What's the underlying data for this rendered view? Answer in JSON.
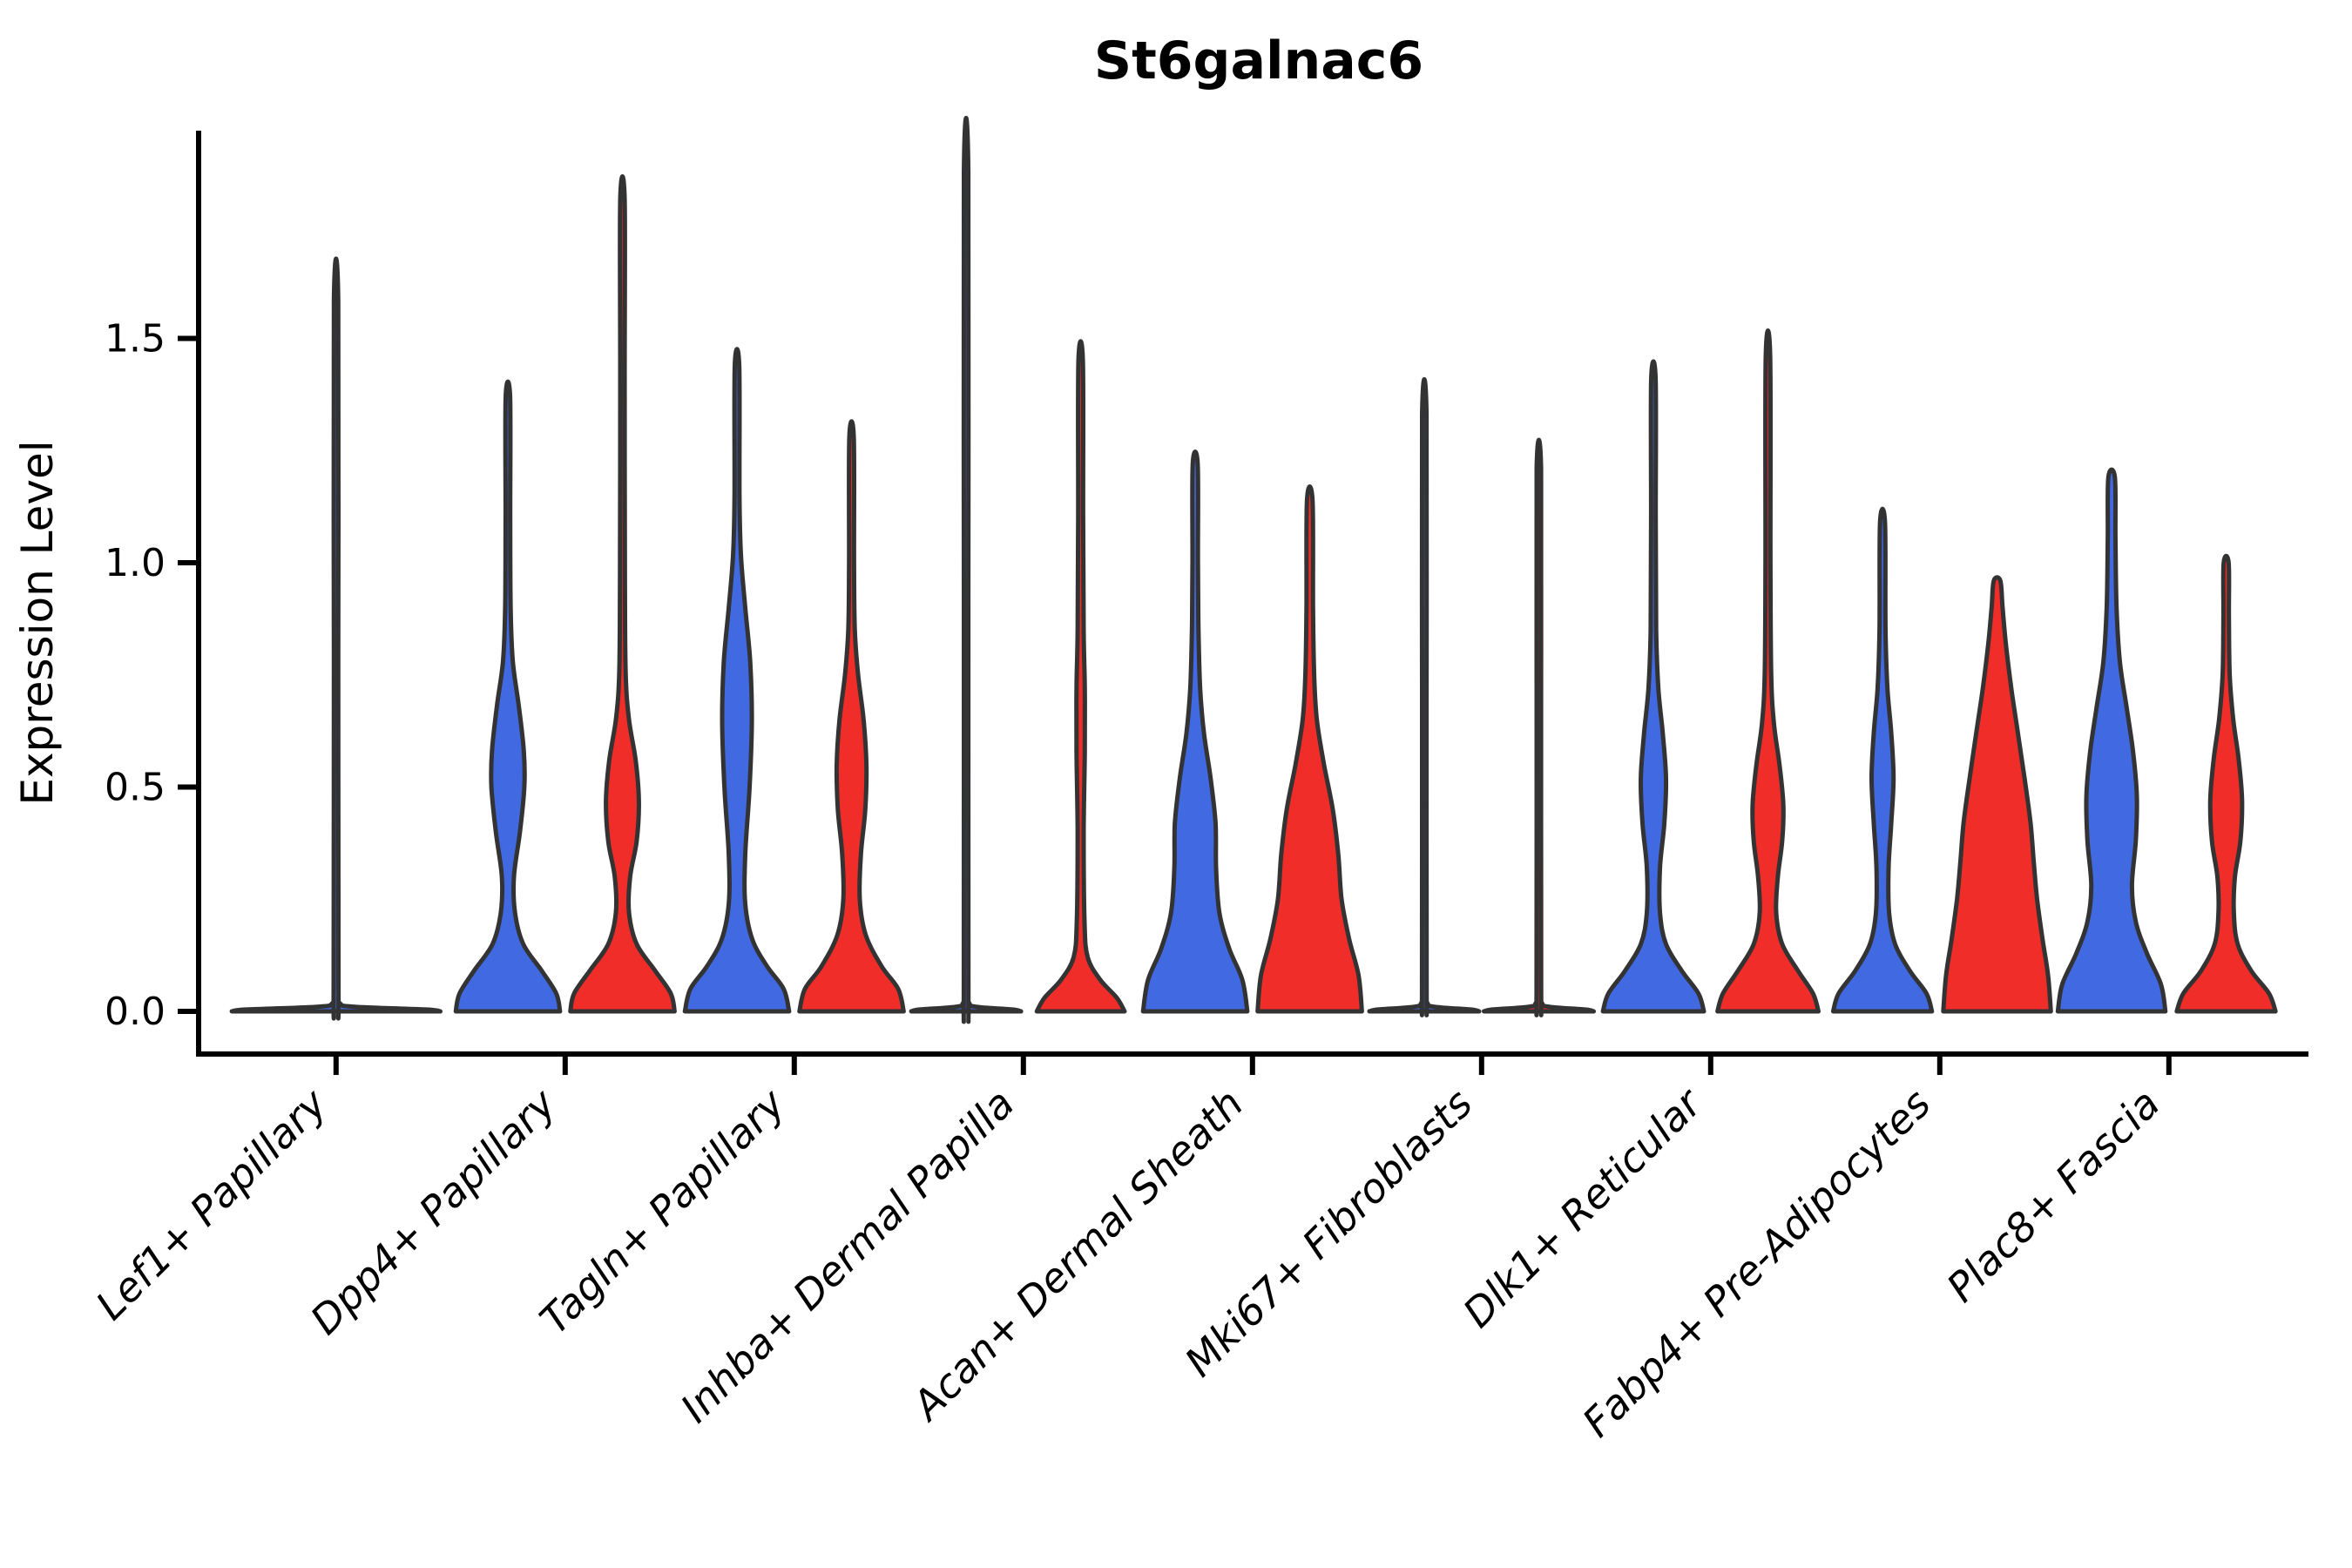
{
  "figure": {
    "background": "#FFFFFF"
  },
  "palette": {
    "blue": "#4169E1",
    "red": "#F02D28",
    "violin_outline": "#333333",
    "axis": "#000000"
  },
  "chart_data": {
    "type": "violin",
    "title": "St6galnac6",
    "xlabel": "",
    "ylabel": "Expression Level",
    "yticks": [
      0.0,
      0.5,
      1.0,
      1.5
    ],
    "ylim": [
      -0.1,
      1.95
    ],
    "grid": false,
    "legend": "none",
    "split_colors": [
      {
        "key": "blue",
        "color": "#4169E1"
      },
      {
        "key": "red",
        "color": "#F02D28"
      }
    ],
    "violins": [
      {
        "category": "Lef1+ Papillary",
        "shapes": [
          {
            "fill": "blue",
            "pos": "center",
            "max": 1.58,
            "profile": [
              [
                0,
                1.9
              ],
              [
                0.004,
                1.65
              ],
              [
                0.01,
                0.35
              ],
              [
                0.018,
                0.07
              ],
              [
                0.05,
                0.045
              ],
              [
                0.8,
                0.04
              ],
              [
                1.58,
                0.04
              ]
            ]
          }
        ]
      },
      {
        "category": "Dpp4+ Papillary",
        "shapes": [
          {
            "fill": "blue",
            "pos": "left",
            "max": 1.37,
            "profile": [
              [
                0,
                0.95
              ],
              [
                0.04,
                0.88
              ],
              [
                0.09,
                0.62
              ],
              [
                0.15,
                0.28
              ],
              [
                0.22,
                0.13
              ],
              [
                0.3,
                0.11
              ],
              [
                0.4,
                0.22
              ],
              [
                0.5,
                0.3
              ],
              [
                0.58,
                0.29
              ],
              [
                0.68,
                0.2
              ],
              [
                0.78,
                0.09
              ],
              [
                0.9,
                0.05
              ],
              [
                1.1,
                0.042
              ],
              [
                1.37,
                0.04
              ]
            ]
          },
          {
            "fill": "red",
            "pos": "right",
            "max": 1.81,
            "profile": [
              [
                0,
                0.95
              ],
              [
                0.04,
                0.88
              ],
              [
                0.09,
                0.6
              ],
              [
                0.15,
                0.26
              ],
              [
                0.22,
                0.12
              ],
              [
                0.3,
                0.14
              ],
              [
                0.38,
                0.26
              ],
              [
                0.47,
                0.3
              ],
              [
                0.56,
                0.24
              ],
              [
                0.65,
                0.12
              ],
              [
                0.75,
                0.06
              ],
              [
                0.95,
                0.045
              ],
              [
                1.4,
                0.04
              ],
              [
                1.81,
                0.04
              ]
            ]
          }
        ]
      },
      {
        "category": "Tagln+ Papillary",
        "shapes": [
          {
            "fill": "blue",
            "pos": "left",
            "max": 1.44,
            "profile": [
              [
                0,
                0.95
              ],
              [
                0.05,
                0.85
              ],
              [
                0.1,
                0.55
              ],
              [
                0.16,
                0.28
              ],
              [
                0.24,
                0.15
              ],
              [
                0.35,
                0.15
              ],
              [
                0.5,
                0.23
              ],
              [
                0.65,
                0.27
              ],
              [
                0.78,
                0.24
              ],
              [
                0.9,
                0.15
              ],
              [
                1.02,
                0.07
              ],
              [
                1.15,
                0.045
              ],
              [
                1.44,
                0.04
              ]
            ]
          },
          {
            "fill": "red",
            "pos": "right",
            "max": 1.28,
            "profile": [
              [
                0,
                0.95
              ],
              [
                0.05,
                0.85
              ],
              [
                0.1,
                0.55
              ],
              [
                0.17,
                0.26
              ],
              [
                0.25,
                0.15
              ],
              [
                0.35,
                0.17
              ],
              [
                0.45,
                0.25
              ],
              [
                0.55,
                0.27
              ],
              [
                0.65,
                0.22
              ],
              [
                0.75,
                0.12
              ],
              [
                0.85,
                0.06
              ],
              [
                1.0,
                0.045
              ],
              [
                1.28,
                0.04
              ]
            ]
          }
        ]
      },
      {
        "category": "Inhba+ Dermal Papilla",
        "shapes": [
          {
            "fill": "blue",
            "pos": "left",
            "max": 1.87,
            "profile": [
              [
                0,
                1.0
              ],
              [
                0.004,
                0.85
              ],
              [
                0.01,
                0.2
              ],
              [
                0.018,
                0.06
              ],
              [
                0.05,
                0.042
              ],
              [
                0.9,
                0.04
              ],
              [
                1.87,
                0.04
              ]
            ]
          },
          {
            "fill": "red",
            "pos": "right",
            "max": 1.45,
            "profile": [
              [
                0,
                0.8
              ],
              [
                0.03,
                0.66
              ],
              [
                0.07,
                0.36
              ],
              [
                0.12,
                0.13
              ],
              [
                0.2,
                0.07
              ],
              [
                0.4,
                0.055
              ],
              [
                0.58,
                0.075
              ],
              [
                0.72,
                0.075
              ],
              [
                0.85,
                0.055
              ],
              [
                1.1,
                0.045
              ],
              [
                1.45,
                0.04
              ]
            ]
          }
        ]
      },
      {
        "category": "Acan+ Dermal Sheath",
        "shapes": [
          {
            "fill": "blue",
            "pos": "left",
            "max": 1.22,
            "profile": [
              [
                0,
                0.95
              ],
              [
                0.07,
                0.86
              ],
              [
                0.14,
                0.62
              ],
              [
                0.22,
                0.44
              ],
              [
                0.32,
                0.38
              ],
              [
                0.42,
                0.37
              ],
              [
                0.52,
                0.28
              ],
              [
                0.62,
                0.16
              ],
              [
                0.72,
                0.09
              ],
              [
                0.85,
                0.06
              ],
              [
                1.0,
                0.05
              ],
              [
                1.22,
                0.045
              ]
            ]
          },
          {
            "fill": "red",
            "pos": "right",
            "max": 1.14,
            "profile": [
              [
                0,
                0.95
              ],
              [
                0.08,
                0.89
              ],
              [
                0.16,
                0.72
              ],
              [
                0.25,
                0.58
              ],
              [
                0.35,
                0.52
              ],
              [
                0.45,
                0.42
              ],
              [
                0.55,
                0.26
              ],
              [
                0.65,
                0.13
              ],
              [
                0.75,
                0.08
              ],
              [
                0.9,
                0.06
              ],
              [
                1.14,
                0.05
              ]
            ]
          }
        ]
      },
      {
        "category": "Mki67+ Fibroblasts",
        "shapes": [
          {
            "fill": "blue",
            "pos": "left",
            "max": 1.33,
            "profile": [
              [
                0,
                1.0
              ],
              [
                0.004,
                0.85
              ],
              [
                0.01,
                0.2
              ],
              [
                0.018,
                0.06
              ],
              [
                0.05,
                0.042
              ],
              [
                0.7,
                0.04
              ],
              [
                1.33,
                0.04
              ]
            ]
          },
          {
            "fill": "red",
            "pos": "right",
            "max": 1.21,
            "profile": [
              [
                0,
                1.0
              ],
              [
                0.004,
                0.85
              ],
              [
                0.01,
                0.2
              ],
              [
                0.018,
                0.06
              ],
              [
                0.05,
                0.042
              ],
              [
                0.7,
                0.04
              ],
              [
                1.21,
                0.04
              ]
            ]
          }
        ]
      },
      {
        "category": "Dlk1+ Reticular",
        "shapes": [
          {
            "fill": "blue",
            "pos": "left",
            "max": 1.41,
            "profile": [
              [
                0,
                0.92
              ],
              [
                0.04,
                0.82
              ],
              [
                0.09,
                0.52
              ],
              [
                0.15,
                0.23
              ],
              [
                0.22,
                0.12
              ],
              [
                0.32,
                0.12
              ],
              [
                0.42,
                0.2
              ],
              [
                0.52,
                0.23
              ],
              [
                0.62,
                0.17
              ],
              [
                0.72,
                0.09
              ],
              [
                0.85,
                0.05
              ],
              [
                1.1,
                0.042
              ],
              [
                1.41,
                0.04
              ]
            ]
          },
          {
            "fill": "red",
            "pos": "right",
            "max": 1.46,
            "profile": [
              [
                0,
                0.92
              ],
              [
                0.04,
                0.82
              ],
              [
                0.09,
                0.55
              ],
              [
                0.15,
                0.26
              ],
              [
                0.22,
                0.15
              ],
              [
                0.3,
                0.18
              ],
              [
                0.38,
                0.26
              ],
              [
                0.46,
                0.28
              ],
              [
                0.55,
                0.21
              ],
              [
                0.64,
                0.11
              ],
              [
                0.75,
                0.06
              ],
              [
                1.0,
                0.045
              ],
              [
                1.46,
                0.04
              ]
            ]
          }
        ]
      },
      {
        "category": "Fabp4+ Pre-Adipocytes",
        "shapes": [
          {
            "fill": "blue",
            "pos": "left",
            "max": 1.09,
            "profile": [
              [
                0,
                0.9
              ],
              [
                0.04,
                0.8
              ],
              [
                0.09,
                0.5
              ],
              [
                0.15,
                0.23
              ],
              [
                0.22,
                0.12
              ],
              [
                0.32,
                0.11
              ],
              [
                0.42,
                0.16
              ],
              [
                0.52,
                0.2
              ],
              [
                0.62,
                0.16
              ],
              [
                0.72,
                0.09
              ],
              [
                0.85,
                0.055
              ],
              [
                1.09,
                0.045
              ]
            ]
          },
          {
            "fill": "red",
            "pos": "right",
            "max": 0.96,
            "profile": [
              [
                0,
                0.98
              ],
              [
                0.08,
                0.93
              ],
              [
                0.16,
                0.83
              ],
              [
                0.25,
                0.73
              ],
              [
                0.33,
                0.67
              ],
              [
                0.42,
                0.61
              ],
              [
                0.52,
                0.5
              ],
              [
                0.62,
                0.38
              ],
              [
                0.72,
                0.26
              ],
              [
                0.82,
                0.16
              ],
              [
                0.9,
                0.1
              ],
              [
                0.96,
                0.06
              ]
            ]
          }
        ]
      },
      {
        "category": "Plac8+ Fascia",
        "shapes": [
          {
            "fill": "blue",
            "pos": "left",
            "max": 1.19,
            "profile": [
              [
                0,
                0.98
              ],
              [
                0.06,
                0.9
              ],
              [
                0.13,
                0.64
              ],
              [
                0.2,
                0.44
              ],
              [
                0.28,
                0.37
              ],
              [
                0.38,
                0.44
              ],
              [
                0.48,
                0.46
              ],
              [
                0.58,
                0.39
              ],
              [
                0.68,
                0.27
              ],
              [
                0.78,
                0.15
              ],
              [
                0.9,
                0.09
              ],
              [
                1.05,
                0.07
              ],
              [
                1.19,
                0.06
              ]
            ]
          },
          {
            "fill": "red",
            "pos": "right",
            "max": 1.0,
            "profile": [
              [
                0,
                0.9
              ],
              [
                0.04,
                0.78
              ],
              [
                0.09,
                0.46
              ],
              [
                0.15,
                0.21
              ],
              [
                0.22,
                0.14
              ],
              [
                0.3,
                0.16
              ],
              [
                0.38,
                0.26
              ],
              [
                0.47,
                0.29
              ],
              [
                0.56,
                0.23
              ],
              [
                0.65,
                0.13
              ],
              [
                0.75,
                0.065
              ],
              [
                0.88,
                0.05
              ],
              [
                1.0,
                0.045
              ]
            ]
          }
        ]
      }
    ]
  }
}
